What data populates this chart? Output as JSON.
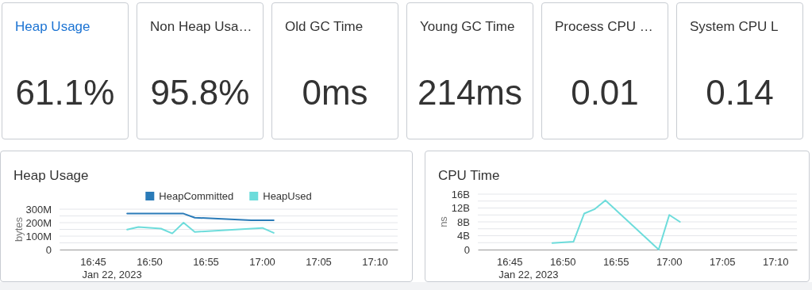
{
  "chart_data": [
    {
      "type": "other",
      "title": "Heap Usage",
      "annotations": [
        "61.1%"
      ]
    },
    {
      "type": "other",
      "title": "Non Heap Usa…",
      "annotations": [
        "95.8%"
      ]
    },
    {
      "type": "other",
      "title": "Old GC Time",
      "annotations": [
        "0ms"
      ]
    },
    {
      "type": "other",
      "title": "Young GC Time",
      "annotations": [
        "214ms"
      ]
    },
    {
      "type": "other",
      "title": "Process CPU …",
      "annotations": [
        "0.01"
      ]
    },
    {
      "type": "other",
      "title": "System CPU L",
      "annotations": [
        "0.14"
      ]
    },
    {
      "type": "line",
      "title": "Heap Usage",
      "ylabel": "bytes",
      "legend": "top",
      "grid": "y",
      "xlim": [
        "2023-01-22T16:42",
        "2023-01-22T17:12"
      ],
      "xticks": [
        {
          "value": "2023-01-22T16:45",
          "label": "16:45"
        },
        {
          "value": "2023-01-22T16:50",
          "label": "16:50"
        },
        {
          "value": "2023-01-22T16:55",
          "label": "16:55"
        },
        {
          "value": "2023-01-22T17:00",
          "label": "17:00"
        },
        {
          "value": "2023-01-22T17:05",
          "label": "17:05"
        },
        {
          "value": "2023-01-22T17:10",
          "label": "17:10"
        }
      ],
      "annotations": [
        "Jan 22, 2023"
      ],
      "ylim": [
        0,
        300000000
      ],
      "yticks": [
        {
          "value": 0,
          "label": "0"
        },
        {
          "value": 50000000,
          "label": null
        },
        {
          "value": 100000000,
          "label": "100M"
        },
        {
          "value": 150000000,
          "label": null
        },
        {
          "value": 200000000,
          "label": "200M"
        },
        {
          "value": 250000000,
          "label": null
        },
        {
          "value": 300000000,
          "label": "300M"
        }
      ],
      "series": [
        {
          "name": "HeapCommitted",
          "color": "#2a7bb8",
          "x": [
            "2023-01-22T16:48",
            "2023-01-22T16:53",
            "2023-01-22T16:54",
            "2023-01-22T16:59",
            "2023-01-22T17:01"
          ],
          "values": [
            267000000,
            267000000,
            237000000,
            217000000,
            217000000
          ]
        },
        {
          "name": "HeapUsed",
          "color": "#6ddcdb",
          "x": [
            "2023-01-22T16:48",
            "2023-01-22T16:49",
            "2023-01-22T16:51",
            "2023-01-22T16:52",
            "2023-01-22T16:53",
            "2023-01-22T16:54",
            "2023-01-22T17:00",
            "2023-01-22T17:01"
          ],
          "values": [
            148000000,
            168000000,
            156000000,
            120000000,
            200000000,
            131000000,
            161000000,
            124000000
          ]
        }
      ]
    },
    {
      "type": "line",
      "title": "CPU Time",
      "ylabel": "ns",
      "grid": "y",
      "xlim": [
        "2023-01-22T16:42",
        "2023-01-22T17:12"
      ],
      "xticks": [
        {
          "value": "2023-01-22T16:45",
          "label": "16:45"
        },
        {
          "value": "2023-01-22T16:50",
          "label": "16:50"
        },
        {
          "value": "2023-01-22T16:55",
          "label": "16:55"
        },
        {
          "value": "2023-01-22T17:00",
          "label": "17:00"
        },
        {
          "value": "2023-01-22T17:05",
          "label": "17:05"
        },
        {
          "value": "2023-01-22T17:10",
          "label": "17:10"
        }
      ],
      "annotations": [
        "Jan 22, 2023"
      ],
      "ylim": [
        0,
        16000000000
      ],
      "yticks": [
        {
          "value": 0,
          "label": "0"
        },
        {
          "value": 2000000000,
          "label": null
        },
        {
          "value": 4000000000,
          "label": "4B"
        },
        {
          "value": 6000000000,
          "label": null
        },
        {
          "value": 8000000000,
          "label": "8B"
        },
        {
          "value": 10000000000,
          "label": null
        },
        {
          "value": 12000000000,
          "label": "12B"
        },
        {
          "value": 14000000000,
          "label": null
        },
        {
          "value": 16000000000,
          "label": "16B"
        }
      ],
      "series": [
        {
          "color": "#6ddcdb",
          "x": [
            "2023-01-22T16:49",
            "2023-01-22T16:51",
            "2023-01-22T16:52",
            "2023-01-22T16:53",
            "2023-01-22T16:54",
            "2023-01-22T16:59",
            "2023-01-22T17:00",
            "2023-01-22T17:01"
          ],
          "values": [
            1900000000,
            2300000000,
            10400000000,
            11700000000,
            14200000000,
            0,
            10000000000,
            8000000000
          ]
        }
      ]
    }
  ]
}
